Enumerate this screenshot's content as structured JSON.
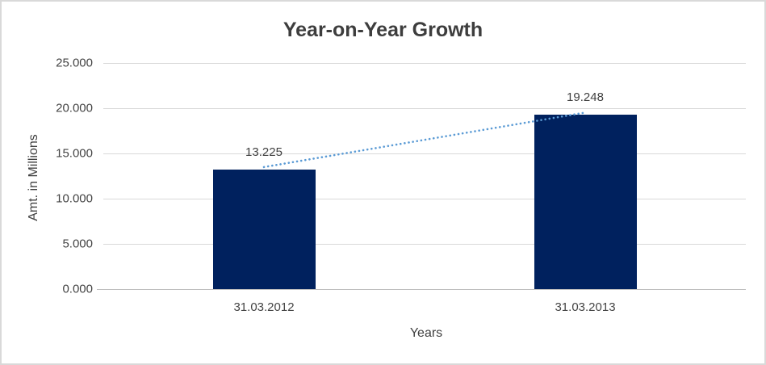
{
  "chart_data": {
    "type": "bar",
    "title": "Year-on-Year Growth",
    "categories": [
      "31.03.2012",
      "31.03.2013"
    ],
    "values": [
      13.225,
      19.248
    ],
    "value_labels": [
      "13.225",
      "19.248"
    ],
    "xlabel": "Years",
    "ylabel": "Amt. in Millions",
    "ylim": [
      0,
      25
    ],
    "yticks": [
      {
        "value": 0,
        "label": "0.000"
      },
      {
        "value": 5,
        "label": "5.000"
      },
      {
        "value": 10,
        "label": "10.000"
      },
      {
        "value": 15,
        "label": "15.000"
      },
      {
        "value": 20,
        "label": "20.000"
      },
      {
        "value": 25,
        "label": "25.000"
      }
    ],
    "grid": true,
    "legend": "none",
    "trendline": {
      "style": "dotted",
      "from_value": 13.225,
      "to_value": 19.248
    },
    "colors": {
      "bar": "#00215E",
      "trendline": "#5B9BD5",
      "gridline": "#D9D9D9",
      "axis_line": "#BFBFBF",
      "tick_text": "#444444",
      "title_text": "#3D3D3D",
      "border": "#D9D9D9",
      "background": "#FFFFFF"
    }
  }
}
